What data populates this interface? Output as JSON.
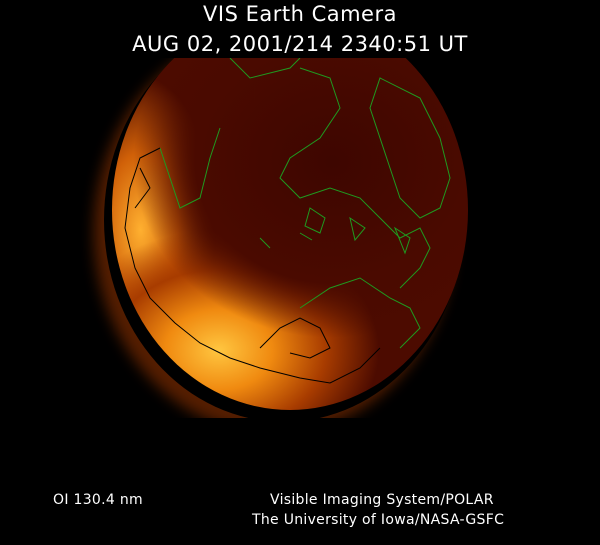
{
  "header": {
    "title": "VIS Earth Camera",
    "timestamp": "AUG 02, 2001/214 2340:51 UT"
  },
  "footer": {
    "band": "OI  130.4 nm",
    "instrument": "Visible Imaging System/POLAR",
    "institution": "The University of Iowa/NASA-GSFC"
  },
  "colors": {
    "background": "#000000",
    "earth_dark": "#4c0b00",
    "aurora_bright": "#ffc640",
    "coastline_day": "#1f9a1f",
    "coastline_night": "#000000"
  }
}
